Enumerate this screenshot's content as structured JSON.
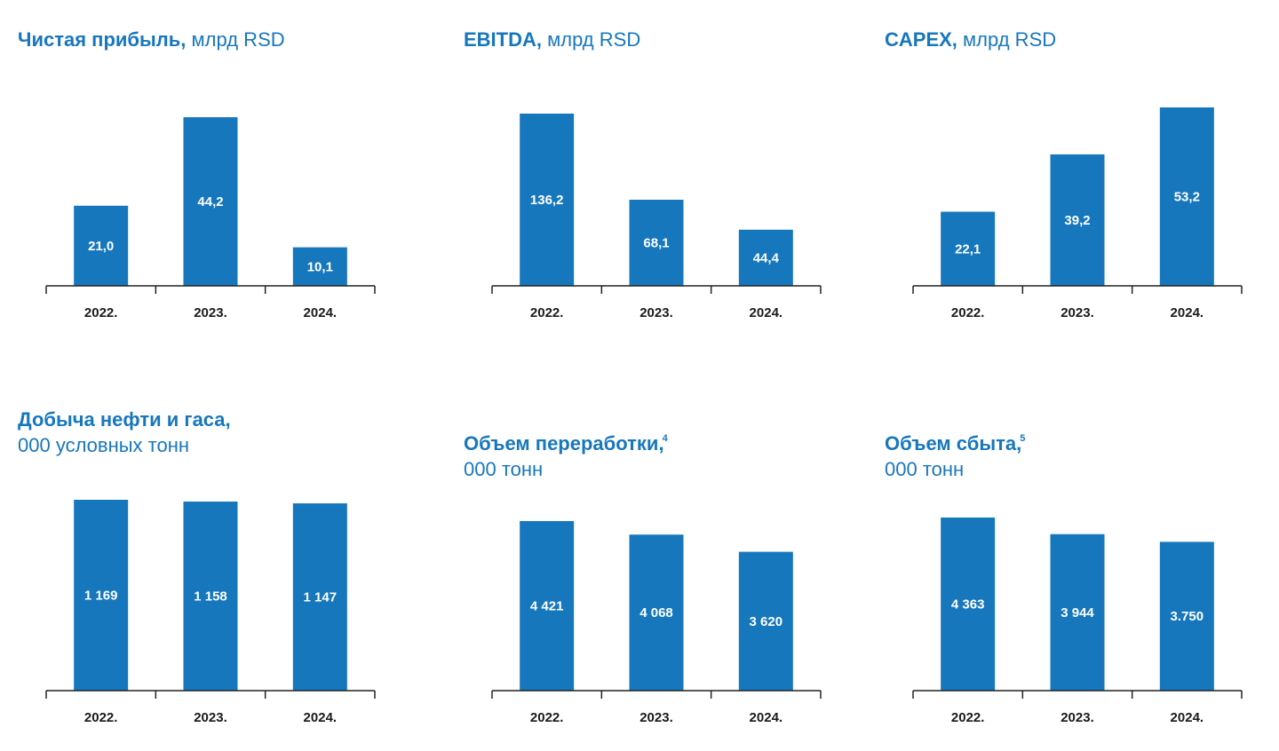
{
  "colors": {
    "bar": "#1777bd",
    "title": "#1777bd",
    "axis": "#222222",
    "label": "#1a1a1a"
  },
  "chart_data": [
    {
      "type": "bar",
      "title_bold": "Чистая прибыль,",
      "title_rest": " млрд RSD",
      "title_sup": "",
      "title_line2": "",
      "categories": [
        "2022.",
        "2023.",
        "2024."
      ],
      "values": [
        21.0,
        44.2,
        10.1
      ],
      "labels": [
        "21,0",
        "44,2",
        "10,1"
      ],
      "ylim": [
        0,
        47
      ]
    },
    {
      "type": "bar",
      "title_bold": "EBITDA,",
      "title_rest": " млрд RSD",
      "title_sup": "",
      "title_line2": "",
      "categories": [
        "2022.",
        "2023.",
        "2024."
      ],
      "values": [
        136.2,
        68.1,
        44.4
      ],
      "labels": [
        "136,2",
        "68,1",
        "44,4"
      ],
      "ylim": [
        0,
        136.2
      ]
    },
    {
      "type": "bar",
      "title_bold": "CAPEX,",
      "title_rest": " млрд RSD",
      "title_sup": "",
      "title_line2": "",
      "categories": [
        "2022.",
        "2023.",
        "2024."
      ],
      "values": [
        22.1,
        39.2,
        53.2
      ],
      "labels": [
        "22,1",
        "39,2",
        "53,2"
      ],
      "ylim": [
        0,
        53.2
      ]
    },
    {
      "type": "bar",
      "title_bold": "Добыча нефти и гаса,",
      "title_rest": "",
      "title_sup": "",
      "title_line2": "000 условных тонн",
      "categories": [
        "2022.",
        "2023.",
        "2024."
      ],
      "values": [
        1169,
        1158,
        1147
      ],
      "labels": [
        "1 169",
        "1 158",
        "1 147"
      ],
      "ylim": [
        0,
        1169
      ]
    },
    {
      "type": "bar",
      "title_bold": "Объем переработки,",
      "title_rest": "",
      "title_sup": "4",
      "title_line2": "000 тонн",
      "categories": [
        "2022.",
        "2023.",
        "2024."
      ],
      "values": [
        4421,
        4068,
        3620
      ],
      "labels": [
        "4 421",
        "4 068",
        "3 620"
      ],
      "ylim": [
        0,
        4421
      ]
    },
    {
      "type": "bar",
      "title_bold": "Объем сбыта,",
      "title_rest": "",
      "title_sup": "5",
      "title_line2": "000 тонн",
      "categories": [
        "2022.",
        "2023.",
        "2024."
      ],
      "values": [
        4363,
        3944,
        3750
      ],
      "labels": [
        "4 363",
        "3 944",
        "3.750"
      ],
      "ylim": [
        0,
        4363
      ]
    }
  ]
}
